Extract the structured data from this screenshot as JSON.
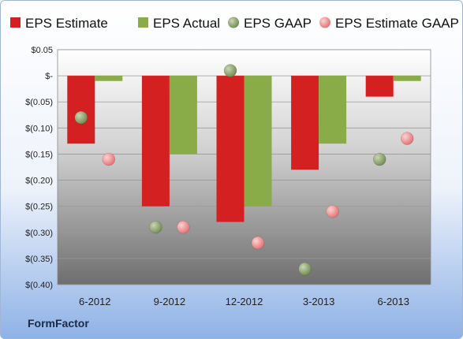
{
  "chart_data": {
    "type": "bar",
    "categories": [
      "6-2012",
      "9-2012",
      "12-2012",
      "3-2013",
      "6-2013"
    ],
    "series": [
      {
        "name": "EPS Estimate",
        "kind": "bar",
        "color": "#d42020",
        "values": [
          -0.13,
          -0.25,
          -0.28,
          -0.18,
          -0.04
        ]
      },
      {
        "name": "EPS Actual",
        "kind": "bar",
        "color": "#8aac48",
        "values": [
          -0.01,
          -0.15,
          -0.25,
          -0.13,
          -0.01
        ]
      },
      {
        "name": "EPS GAAP",
        "kind": "scatter",
        "color": "#7e9b5a",
        "values": [
          -0.08,
          -0.29,
          0.01,
          -0.37,
          -0.16
        ]
      },
      {
        "name": "EPS Estimate GAAP",
        "kind": "scatter",
        "color": "#ec8a8a",
        "values": [
          -0.16,
          -0.29,
          -0.32,
          -0.26,
          -0.12
        ]
      }
    ],
    "ylim": [
      -0.4,
      0.05
    ],
    "yticks": [
      0.05,
      0,
      -0.05,
      -0.1,
      -0.15,
      -0.2,
      -0.25,
      -0.3,
      -0.35,
      -0.4
    ],
    "ytick_labels": [
      "$0.05",
      "$-",
      "$(0.05)",
      "$(0.10)",
      "$(0.15)",
      "$(0.20)",
      "$(0.25)",
      "$(0.30)",
      "$(0.35)",
      "$(0.40)"
    ],
    "grid": true,
    "legend": "top"
  },
  "brand": "FormFactor"
}
